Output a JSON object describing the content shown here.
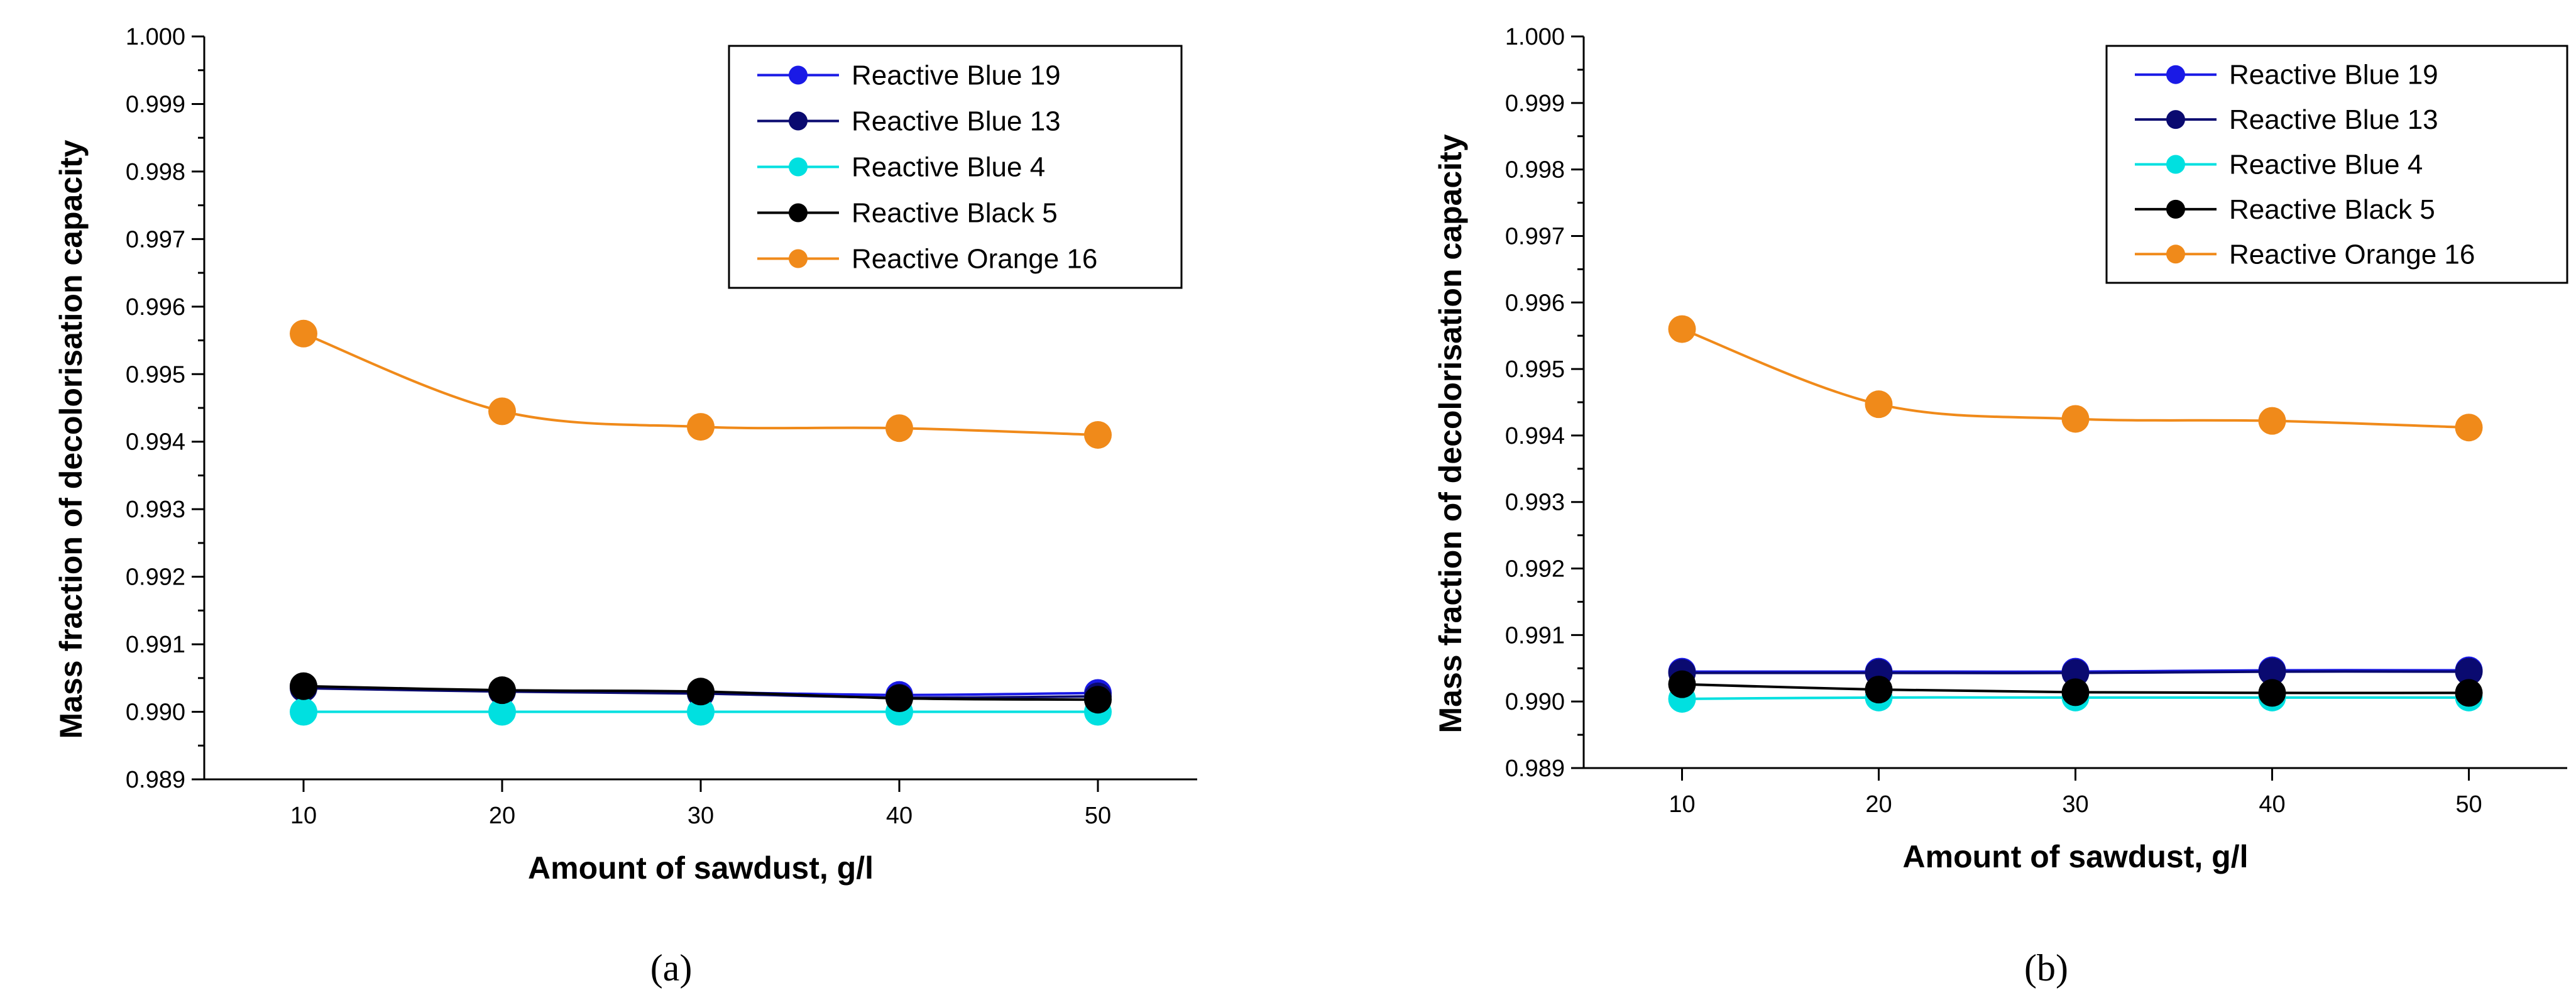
{
  "chart_data": [
    {
      "type": "line",
      "panel_label": "(a)",
      "title": "",
      "xlabel": "Amount of sawdust, g/l",
      "ylabel": "Mass fraction of decolorisation capacity",
      "xlim": [
        5,
        55
      ],
      "ylim": [
        0.989,
        1.0
      ],
      "x_ticks": [
        10,
        20,
        30,
        40,
        50
      ],
      "y_ticks": [
        "0.989",
        "0.990",
        "0.991",
        "0.992",
        "0.993",
        "0.994",
        "0.995",
        "0.996",
        "0.997",
        "0.998",
        "0.999",
        "1.000"
      ],
      "grid": false,
      "legend_position": "top-right",
      "x": [
        10,
        20,
        30,
        40,
        50
      ],
      "series": [
        {
          "name": "Reactive Blue 19",
          "color": "#1a1ae6",
          "values": [
            0.99037,
            0.99031,
            0.99029,
            0.99025,
            0.99028
          ]
        },
        {
          "name": "Reactive Blue 13",
          "color": "#0a0a70",
          "values": [
            0.99035,
            0.9903,
            0.99027,
            0.99021,
            0.99023
          ]
        },
        {
          "name": "Reactive Blue 4",
          "color": "#00e0e0",
          "values": [
            0.99,
            0.99,
            0.99,
            0.99,
            0.99
          ]
        },
        {
          "name": "Reactive Black 5",
          "color": "#000000",
          "values": [
            0.99038,
            0.99032,
            0.9903,
            0.9902,
            0.99018
          ]
        },
        {
          "name": "Reactive Orange 16",
          "color": "#f08a1a",
          "values": [
            0.9956,
            0.99445,
            0.99422,
            0.9942,
            0.9941
          ]
        }
      ]
    },
    {
      "type": "line",
      "panel_label": "(b)",
      "title": "",
      "xlabel": "Amount of sawdust, g/l",
      "ylabel": "Mass fraction of decolorisation capacity",
      "xlim": [
        5,
        55
      ],
      "ylim": [
        0.989,
        1.0
      ],
      "x_ticks": [
        10,
        20,
        30,
        40,
        50
      ],
      "y_ticks": [
        "0.989",
        "0.990",
        "0.991",
        "0.992",
        "0.993",
        "0.994",
        "0.995",
        "0.996",
        "0.997",
        "0.998",
        "0.999",
        "1.000"
      ],
      "grid": false,
      "legend_position": "top-right",
      "x": [
        10,
        20,
        30,
        40,
        50
      ],
      "series": [
        {
          "name": "Reactive Blue 19",
          "color": "#1a1ae6",
          "values": [
            0.99045,
            0.99045,
            0.99045,
            0.99047,
            0.99047
          ]
        },
        {
          "name": "Reactive Blue 13",
          "color": "#0a0a70",
          "values": [
            0.99043,
            0.99043,
            0.99043,
            0.99045,
            0.99045
          ]
        },
        {
          "name": "Reactive Blue 4",
          "color": "#00e0e0",
          "values": [
            0.99004,
            0.99006,
            0.99006,
            0.99006,
            0.99006
          ]
        },
        {
          "name": "Reactive Black 5",
          "color": "#000000",
          "values": [
            0.99026,
            0.99018,
            0.99014,
            0.99013,
            0.99013
          ]
        },
        {
          "name": "Reactive Orange 16",
          "color": "#f08a1a",
          "values": [
            0.9956,
            0.99447,
            0.99425,
            0.99422,
            0.99412
          ]
        }
      ]
    }
  ]
}
